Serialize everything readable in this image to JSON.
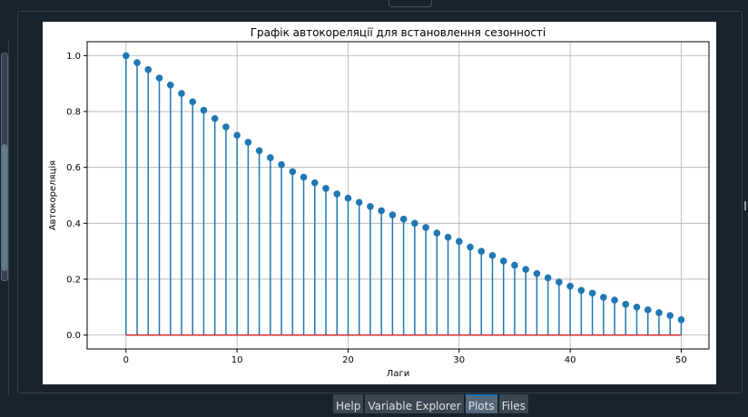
{
  "tabs": [
    {
      "label": "Help",
      "active": false
    },
    {
      "label": "Variable Explorer",
      "active": false
    },
    {
      "label": "Plots",
      "active": true
    },
    {
      "label": "Files",
      "active": false
    }
  ],
  "colors": {
    "stem": "#1f77b4",
    "baseline": "#d62728",
    "active_tab_accent": "#1a72bb",
    "background": "#19232d"
  },
  "chart_data": {
    "type": "stem",
    "title": "Графік автокореляції для встановлення сезонності",
    "xlabel": "Лаги",
    "ylabel": "Автокореляція",
    "xlim": [
      -3.5,
      52.5
    ],
    "ylim": [
      -0.05,
      1.05
    ],
    "xticks": [
      0,
      10,
      20,
      30,
      40,
      50
    ],
    "yticks": [
      0.0,
      0.2,
      0.4,
      0.6,
      0.8,
      1.0
    ],
    "ytick_labels": [
      "0.0",
      "0.2",
      "0.4",
      "0.6",
      "0.8",
      "1.0"
    ],
    "grid": true,
    "baseline": 0,
    "x": [
      0,
      1,
      2,
      3,
      4,
      5,
      6,
      7,
      8,
      9,
      10,
      11,
      12,
      13,
      14,
      15,
      16,
      17,
      18,
      19,
      20,
      21,
      22,
      23,
      24,
      25,
      26,
      27,
      28,
      29,
      30,
      31,
      32,
      33,
      34,
      35,
      36,
      37,
      38,
      39,
      40,
      41,
      42,
      43,
      44,
      45,
      46,
      47,
      48,
      49,
      50
    ],
    "values": [
      1.0,
      0.975,
      0.95,
      0.92,
      0.895,
      0.865,
      0.835,
      0.805,
      0.775,
      0.745,
      0.715,
      0.69,
      0.66,
      0.635,
      0.61,
      0.585,
      0.565,
      0.545,
      0.525,
      0.505,
      0.49,
      0.475,
      0.46,
      0.445,
      0.43,
      0.415,
      0.4,
      0.385,
      0.365,
      0.35,
      0.335,
      0.315,
      0.3,
      0.285,
      0.265,
      0.25,
      0.235,
      0.22,
      0.205,
      0.19,
      0.175,
      0.16,
      0.15,
      0.135,
      0.125,
      0.11,
      0.1,
      0.09,
      0.08,
      0.07,
      0.055
    ]
  }
}
